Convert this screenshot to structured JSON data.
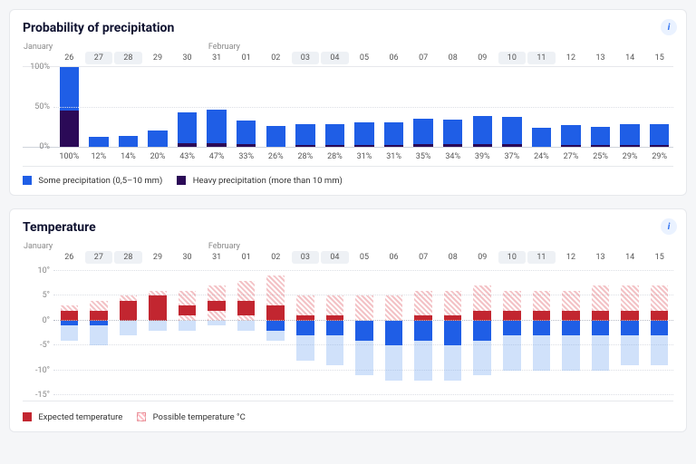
{
  "precip": {
    "title": "Probability of precipitation",
    "months": {
      "jan_label": "January",
      "feb_label": "February",
      "jan_col": 0,
      "feb_col": 6
    },
    "days": [
      {
        "d": "26",
        "wk": false
      },
      {
        "d": "27",
        "wk": true
      },
      {
        "d": "28",
        "wk": true
      },
      {
        "d": "29",
        "wk": false
      },
      {
        "d": "30",
        "wk": false
      },
      {
        "d": "31",
        "wk": false
      },
      {
        "d": "01",
        "wk": false
      },
      {
        "d": "02",
        "wk": false
      },
      {
        "d": "03",
        "wk": true
      },
      {
        "d": "04",
        "wk": true
      },
      {
        "d": "05",
        "wk": false
      },
      {
        "d": "06",
        "wk": false
      },
      {
        "d": "07",
        "wk": false
      },
      {
        "d": "08",
        "wk": false
      },
      {
        "d": "09",
        "wk": false
      },
      {
        "d": "10",
        "wk": true
      },
      {
        "d": "11",
        "wk": true
      },
      {
        "d": "12",
        "wk": false
      },
      {
        "d": "13",
        "wk": false
      },
      {
        "d": "14",
        "wk": false
      },
      {
        "d": "15",
        "wk": false
      }
    ],
    "y_ticks": [
      {
        "v": 0,
        "l": "0%"
      },
      {
        "v": 50,
        "l": "50%"
      },
      {
        "v": 100,
        "l": "100%"
      }
    ],
    "y_max": 100,
    "series": [
      {
        "total": 100,
        "heavy": 45
      },
      {
        "total": 12,
        "heavy": 0
      },
      {
        "total": 14,
        "heavy": 0
      },
      {
        "total": 20,
        "heavy": 0
      },
      {
        "total": 43,
        "heavy": 4
      },
      {
        "total": 47,
        "heavy": 4
      },
      {
        "total": 33,
        "heavy": 3
      },
      {
        "total": 26,
        "heavy": 0
      },
      {
        "total": 28,
        "heavy": 2
      },
      {
        "total": 28,
        "heavy": 2
      },
      {
        "total": 31,
        "heavy": 2
      },
      {
        "total": 31,
        "heavy": 2
      },
      {
        "total": 35,
        "heavy": 3
      },
      {
        "total": 34,
        "heavy": 3
      },
      {
        "total": 39,
        "heavy": 3
      },
      {
        "total": 37,
        "heavy": 3
      },
      {
        "total": 24,
        "heavy": 0
      },
      {
        "total": 27,
        "heavy": 2
      },
      {
        "total": 25,
        "heavy": 2
      },
      {
        "total": 29,
        "heavy": 2
      },
      {
        "total": 29,
        "heavy": 2
      }
    ],
    "legend": {
      "some": "Some precipitation (0,5–10 mm)",
      "heavy": "Heavy precipitation (more than 10 mm)"
    },
    "colors": {
      "some": "#1f5ee6",
      "heavy": "#2b0a57"
    }
  },
  "temp": {
    "title": "Temperature",
    "y_ticks": [
      {
        "v": 10,
        "l": "10°"
      },
      {
        "v": 5,
        "l": "5°"
      },
      {
        "v": 0,
        "l": "0°"
      },
      {
        "v": -5,
        "l": "-5°"
      },
      {
        "v": -10,
        "l": "-10°"
      },
      {
        "v": -15,
        "l": "-15°"
      }
    ],
    "y_max": 11,
    "y_min": -16,
    "series": [
      {
        "eh": 2,
        "el": -1,
        "ph": 3,
        "pl": -4
      },
      {
        "eh": 2,
        "el": -1,
        "ph": 4,
        "pl": -5
      },
      {
        "eh": 4,
        "el": 0,
        "ph": 5,
        "pl": -3
      },
      {
        "eh": 5,
        "el": 0,
        "ph": 6,
        "pl": -2
      },
      {
        "eh": 3,
        "el": 1,
        "ph": 6,
        "pl": -2
      },
      {
        "eh": 4,
        "el": 2,
        "ph": 7,
        "pl": -1
      },
      {
        "eh": 4,
        "el": 1,
        "ph": 8,
        "pl": -2
      },
      {
        "eh": 3,
        "el": -2,
        "ph": 9,
        "pl": -4
      },
      {
        "eh": 1,
        "el": -3,
        "ph": 5,
        "pl": -8
      },
      {
        "eh": 1,
        "el": -3,
        "ph": 5,
        "pl": -9
      },
      {
        "eh": 0,
        "el": -4,
        "ph": 5,
        "pl": -11
      },
      {
        "eh": 0,
        "el": -5,
        "ph": 5,
        "pl": -12
      },
      {
        "eh": 1,
        "el": -4,
        "ph": 6,
        "pl": -12
      },
      {
        "eh": 1,
        "el": -5,
        "ph": 6,
        "pl": -12
      },
      {
        "eh": 2,
        "el": -4,
        "ph": 7,
        "pl": -11
      },
      {
        "eh": 2,
        "el": -3,
        "ph": 6,
        "pl": -10
      },
      {
        "eh": 2,
        "el": -3,
        "ph": 6,
        "pl": -10
      },
      {
        "eh": 2,
        "el": -3,
        "ph": 6,
        "pl": -10
      },
      {
        "eh": 2,
        "el": -3,
        "ph": 7,
        "pl": -10
      },
      {
        "eh": 2,
        "el": -3,
        "ph": 7,
        "pl": -9
      },
      {
        "eh": 2,
        "el": -3,
        "ph": 7,
        "pl": -9
      }
    ],
    "legend": {
      "expected": "Expected temperature",
      "possible": "Possible temperature °C"
    },
    "colors": {
      "exp_pos": "#c22630",
      "exp_neg": "#1f5ee6"
    }
  },
  "info_glyph": "i"
}
